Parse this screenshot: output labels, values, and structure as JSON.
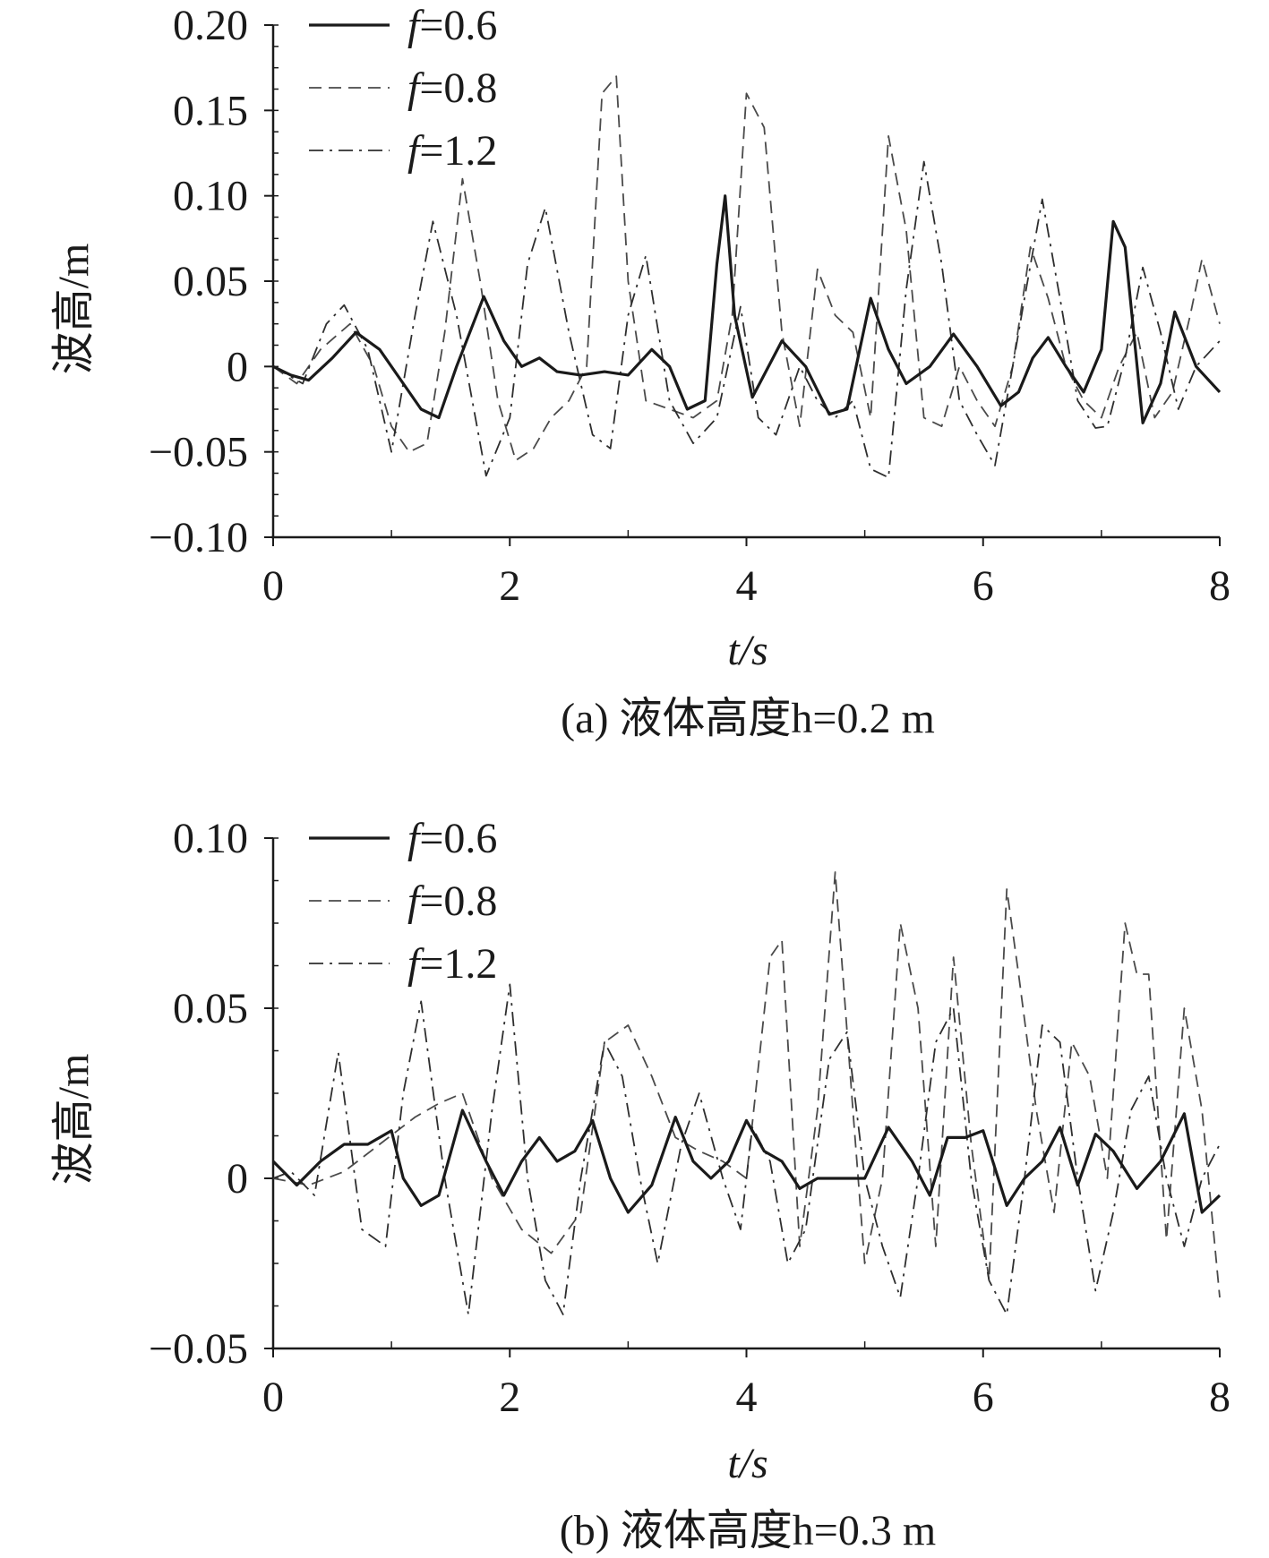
{
  "chart_data": [
    {
      "type": "line",
      "panel_caption": "(a) 液体高度h=0.2 m",
      "xlabel": "t/s",
      "ylabel": "波高/m",
      "xlim": [
        0,
        8
      ],
      "ylim": [
        -0.1,
        0.2
      ],
      "x_ticks": [
        "0",
        "2",
        "4",
        "6",
        "8"
      ],
      "y_ticks": [
        "0.20",
        "0.15",
        "0.10",
        "0.05",
        "0",
        "−0.05",
        "−0.10"
      ],
      "legend_position": "top-left",
      "grid": false,
      "series": [
        {
          "name": "f=0.6",
          "style": "solid",
          "color": "#1a1a1a",
          "x": [
            0,
            0.15,
            0.3,
            0.5,
            0.7,
            0.9,
            1.1,
            1.25,
            1.4,
            1.55,
            1.78,
            1.95,
            2.1,
            2.25,
            2.4,
            2.6,
            2.8,
            3.0,
            3.2,
            3.35,
            3.5,
            3.65,
            3.75,
            3.82,
            3.9,
            4.05,
            4.3,
            4.5,
            4.7,
            4.85,
            5.05,
            5.2,
            5.35,
            5.55,
            5.75,
            5.95,
            6.15,
            6.3,
            6.42,
            6.55,
            6.7,
            6.85,
            7.0,
            7.1,
            7.2,
            7.35,
            7.5,
            7.62,
            7.8,
            8.0
          ],
          "y": [
            0.0,
            -0.005,
            -0.008,
            0.005,
            0.02,
            0.01,
            -0.01,
            -0.025,
            -0.03,
            0.0,
            0.041,
            0.015,
            0.0,
            0.005,
            -0.003,
            -0.005,
            -0.003,
            -0.005,
            0.01,
            0.0,
            -0.025,
            -0.02,
            0.06,
            0.1,
            0.03,
            -0.018,
            0.015,
            0.0,
            -0.028,
            -0.025,
            0.04,
            0.01,
            -0.01,
            0.0,
            0.019,
            0.0,
            -0.023,
            -0.015,
            0.005,
            0.017,
            0.0,
            -0.015,
            0.01,
            0.085,
            0.07,
            -0.033,
            -0.01,
            0.032,
            0.0,
            -0.015
          ]
        },
        {
          "name": "f=0.8",
          "style": "dashed",
          "color": "#4a4a4a",
          "x": [
            0,
            0.2,
            0.4,
            0.65,
            0.85,
            1.0,
            1.15,
            1.3,
            1.45,
            1.6,
            1.75,
            1.9,
            2.05,
            2.2,
            2.35,
            2.5,
            2.65,
            2.78,
            2.9,
            3.0,
            3.15,
            3.35,
            3.55,
            3.75,
            3.88,
            4.0,
            4.15,
            4.3,
            4.45,
            4.6,
            4.75,
            4.9,
            5.05,
            5.2,
            5.35,
            5.5,
            5.65,
            5.8,
            5.95,
            6.1,
            6.25,
            6.4,
            6.55,
            6.7,
            6.85,
            7.0,
            7.15,
            7.3,
            7.45,
            7.6,
            7.75,
            7.85,
            8.0
          ],
          "y": [
            0.0,
            -0.01,
            0.01,
            0.025,
            0.0,
            -0.035,
            -0.05,
            -0.045,
            0.02,
            0.11,
            0.05,
            -0.02,
            -0.055,
            -0.048,
            -0.03,
            -0.02,
            0.0,
            0.16,
            0.17,
            0.05,
            -0.02,
            -0.025,
            -0.03,
            -0.02,
            0.03,
            0.16,
            0.14,
            0.02,
            -0.035,
            0.057,
            0.03,
            0.02,
            -0.03,
            0.135,
            0.08,
            -0.03,
            -0.035,
            0.0,
            -0.02,
            -0.035,
            0.0,
            0.07,
            0.04,
            0.0,
            -0.02,
            -0.03,
            0.0,
            0.02,
            -0.03,
            -0.015,
            0.03,
            0.063,
            0.025
          ]
        },
        {
          "name": "f=1.2",
          "style": "dashdot",
          "color": "#2e2e2e",
          "x": [
            0,
            0.25,
            0.45,
            0.6,
            0.8,
            1.0,
            1.2,
            1.35,
            1.55,
            1.8,
            2.0,
            2.15,
            2.3,
            2.5,
            2.7,
            2.85,
            3.0,
            3.15,
            3.35,
            3.55,
            3.75,
            3.95,
            4.1,
            4.25,
            4.45,
            4.6,
            4.75,
            4.9,
            5.05,
            5.2,
            5.35,
            5.5,
            5.65,
            5.8,
            5.95,
            6.1,
            6.25,
            6.35,
            6.5,
            6.65,
            6.8,
            6.95,
            7.05,
            7.2,
            7.35,
            7.5,
            7.65,
            7.8,
            8.0
          ],
          "y": [
            0.0,
            -0.01,
            0.025,
            0.036,
            0.01,
            -0.05,
            0.03,
            0.085,
            0.03,
            -0.064,
            -0.03,
            0.06,
            0.093,
            0.02,
            -0.04,
            -0.048,
            0.03,
            0.065,
            -0.02,
            -0.045,
            -0.03,
            0.035,
            -0.03,
            -0.04,
            0.0,
            -0.02,
            -0.03,
            -0.02,
            -0.06,
            -0.065,
            0.045,
            0.12,
            0.06,
            -0.02,
            -0.04,
            -0.058,
            0.0,
            0.04,
            0.098,
            0.04,
            -0.02,
            -0.036,
            -0.035,
            0.005,
            0.058,
            0.02,
            -0.025,
            0.0,
            0.015
          ]
        }
      ]
    },
    {
      "type": "line",
      "panel_caption": "(b) 液体高度h=0.3 m",
      "xlabel": "t/s",
      "ylabel": "波高/m",
      "xlim": [
        0,
        8
      ],
      "ylim": [
        -0.05,
        0.1
      ],
      "x_ticks": [
        "0",
        "2",
        "4",
        "6",
        "8"
      ],
      "y_ticks": [
        "0.10",
        "0.05",
        "0",
        "−0.05"
      ],
      "legend_position": "top-left",
      "grid": false,
      "series": [
        {
          "name": "f=0.6",
          "style": "solid",
          "color": "#1a1a1a",
          "x": [
            0,
            0.2,
            0.4,
            0.6,
            0.8,
            1.0,
            1.1,
            1.25,
            1.4,
            1.6,
            1.8,
            1.95,
            2.1,
            2.25,
            2.4,
            2.55,
            2.7,
            2.85,
            3.0,
            3.2,
            3.4,
            3.55,
            3.7,
            3.85,
            4.0,
            4.15,
            4.3,
            4.45,
            4.6,
            4.8,
            5.0,
            5.2,
            5.4,
            5.55,
            5.7,
            5.85,
            6.0,
            6.2,
            6.35,
            6.5,
            6.65,
            6.8,
            6.95,
            7.1,
            7.3,
            7.5,
            7.7,
            7.85,
            8.0
          ],
          "y": [
            0.005,
            -0.002,
            0.005,
            0.01,
            0.01,
            0.014,
            0.0,
            -0.008,
            -0.005,
            0.02,
            0.005,
            -0.005,
            0.005,
            0.012,
            0.005,
            0.008,
            0.017,
            0.0,
            -0.01,
            -0.002,
            0.018,
            0.005,
            0.0,
            0.005,
            0.017,
            0.008,
            0.005,
            -0.003,
            0.0,
            0.0,
            0.0,
            0.015,
            0.005,
            -0.005,
            0.012,
            0.012,
            0.014,
            -0.008,
            0.0,
            0.005,
            0.015,
            -0.002,
            0.013,
            0.008,
            -0.003,
            0.005,
            0.019,
            -0.01,
            -0.005
          ]
        },
        {
          "name": "f=0.8",
          "style": "dashed",
          "color": "#4a4a4a",
          "x": [
            0,
            0.3,
            0.6,
            0.9,
            1.2,
            1.4,
            1.6,
            1.85,
            2.1,
            2.35,
            2.6,
            2.8,
            3.0,
            3.2,
            3.4,
            3.6,
            3.8,
            4.0,
            4.2,
            4.3,
            4.45,
            4.6,
            4.75,
            4.9,
            5.0,
            5.15,
            5.3,
            5.45,
            5.6,
            5.75,
            5.9,
            6.05,
            6.2,
            6.3,
            6.45,
            6.6,
            6.75,
            6.9,
            7.05,
            7.2,
            7.3,
            7.4,
            7.55,
            7.7,
            7.85,
            8.0
          ],
          "y": [
            0.0,
            -0.002,
            0.002,
            0.01,
            0.018,
            0.022,
            0.025,
            0.0,
            -0.015,
            -0.022,
            -0.01,
            0.04,
            0.045,
            0.03,
            0.012,
            0.008,
            0.005,
            0.0,
            0.065,
            0.07,
            -0.02,
            0.02,
            0.09,
            0.02,
            -0.025,
            0.0,
            0.075,
            0.05,
            -0.02,
            0.065,
            0.01,
            -0.03,
            0.085,
            0.06,
            0.02,
            -0.01,
            0.04,
            0.03,
            0.0,
            0.075,
            0.06,
            0.06,
            -0.018,
            0.05,
            0.02,
            -0.035
          ]
        },
        {
          "name": "f=1.2",
          "style": "dashdot",
          "color": "#2e2e2e",
          "x": [
            0,
            0.15,
            0.35,
            0.55,
            0.75,
            0.95,
            1.1,
            1.25,
            1.45,
            1.65,
            1.85,
            2.0,
            2.15,
            2.3,
            2.45,
            2.6,
            2.8,
            2.95,
            3.1,
            3.25,
            3.45,
            3.6,
            3.8,
            3.95,
            4.05,
            4.2,
            4.35,
            4.5,
            4.7,
            4.85,
            5.0,
            5.15,
            5.3,
            5.45,
            5.6,
            5.75,
            5.9,
            6.05,
            6.2,
            6.35,
            6.5,
            6.65,
            6.8,
            6.95,
            7.1,
            7.25,
            7.4,
            7.55,
            7.7,
            7.85,
            8.0
          ],
          "y": [
            0.0,
            0.002,
            -0.005,
            0.037,
            -0.015,
            -0.02,
            0.025,
            0.052,
            0.0,
            -0.04,
            0.02,
            0.057,
            0.0,
            -0.03,
            -0.04,
            0.0,
            0.04,
            0.03,
            0.0,
            -0.025,
            0.01,
            0.025,
            0.0,
            -0.015,
            0.015,
            0.005,
            -0.025,
            -0.015,
            0.035,
            0.043,
            0.0,
            -0.02,
            -0.035,
            0.0,
            0.04,
            0.05,
            0.0,
            -0.03,
            -0.04,
            0.0,
            0.045,
            0.04,
            0.0,
            -0.033,
            -0.01,
            0.02,
            0.03,
            0.0,
            -0.02,
            0.0,
            0.01
          ]
        }
      ]
    }
  ]
}
